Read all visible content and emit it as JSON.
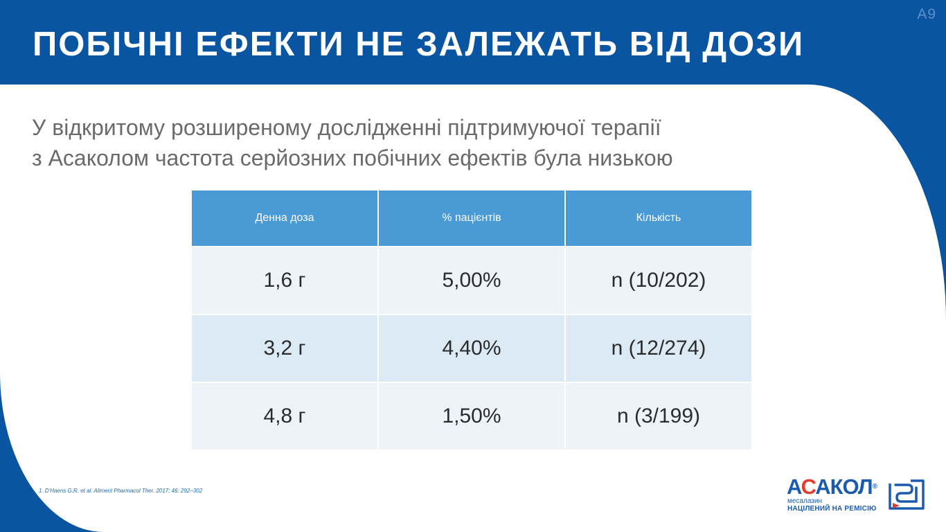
{
  "slide": {
    "id": "A9"
  },
  "header": {
    "title": "ПОБІЧНІ ЕФЕКТИ НЕ ЗАЛЕЖАТЬ ВІД ДОЗИ"
  },
  "subtitle": {
    "line1": "У відкритому розширеному дослідженні підтримуючої терапії",
    "line2": "з Асаколом частота серйозних побічних ефектів була низькою"
  },
  "table": {
    "columns": [
      "Денна доза",
      "% пацієнтів",
      "Кількість"
    ],
    "rows": [
      [
        "1,6 г",
        "5,00%",
        "n (10/202)"
      ],
      [
        "3,2 г",
        "4,40%",
        "n (12/274)"
      ],
      [
        "4,8 г",
        "1,50%",
        "n (3/199)"
      ]
    ]
  },
  "footnote": "1. D'Haens G.R. et al. Aliment Pharmacol Ther. 2017; 46: 292–302",
  "logo": {
    "brand_prefix": "А",
    "brand_accent": "С",
    "brand_suffix": "АКОЛ",
    "registered": "®",
    "generic": "месалазин",
    "tagline": "НАЦІЛЕНИЙ НА РЕМІСІЮ"
  },
  "colors": {
    "header_blue": "#0a55a2",
    "table_header": "#4a9ad6",
    "row_light": "#edf3f9",
    "row_dark": "#dbeaf5",
    "brand_red": "#e03c31"
  }
}
